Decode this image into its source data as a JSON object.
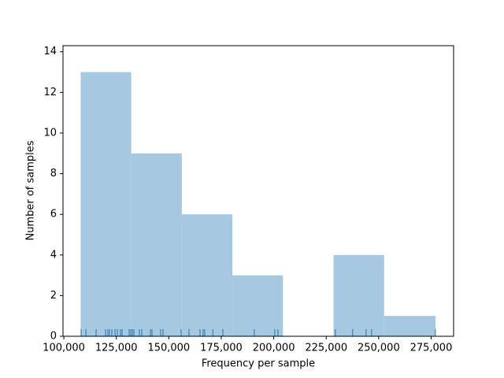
{
  "chart_data": {
    "type": "histogram",
    "xlabel": "Frequency per sample",
    "ylabel": "Number of samples",
    "bins": [
      108000,
      132100,
      156200,
      180300,
      204400,
      228500,
      252600,
      277100
    ],
    "values": [
      13,
      9,
      6,
      3,
      0,
      4,
      1
    ],
    "color": "#a6c8e0",
    "rug": [
      108250,
      110500,
      115375,
      119875,
      121000,
      121750,
      122875,
      124375,
      125500,
      127000,
      127750,
      131125,
      131875,
      132625,
      133375,
      136000,
      137125,
      141250,
      142000,
      146125,
      147250,
      155875,
      159625,
      164875,
      166375,
      167125,
      171000,
      175750,
      190750,
      200500,
      202000,
      229375,
      237625,
      244000,
      246625,
      277000
    ],
    "rug_color": "#1f77b4",
    "xlim": [
      99600,
      285700
    ],
    "ylim": [
      0,
      14.3
    ],
    "xticks": [
      {
        "value": 100000,
        "label": "100,000"
      },
      {
        "value": 125000,
        "label": "125,000"
      },
      {
        "value": 150000,
        "label": "150,000"
      },
      {
        "value": 175000,
        "label": "175,000"
      },
      {
        "value": 200000,
        "label": "200,000"
      },
      {
        "value": 225000,
        "label": "225,000"
      },
      {
        "value": 250000,
        "label": "250,000"
      },
      {
        "value": 275000,
        "label": "275,000"
      }
    ],
    "yticks": [
      0,
      2,
      4,
      6,
      8,
      10,
      12,
      14
    ]
  }
}
